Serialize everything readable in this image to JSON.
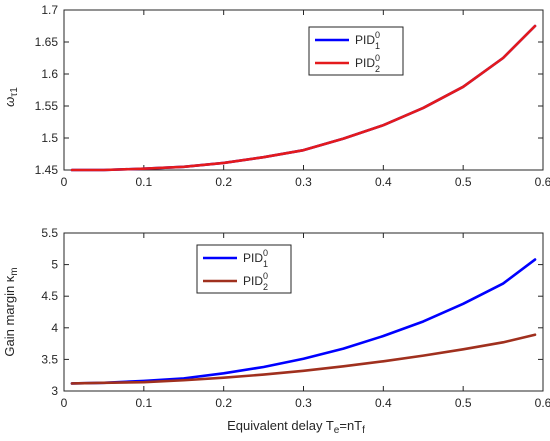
{
  "chart_data": [
    {
      "type": "line",
      "xlabel": "",
      "ylabel": {
        "base": "ω",
        "sub": "τ1"
      },
      "xlim": [
        0,
        0.6
      ],
      "ylim": [
        1.45,
        1.7
      ],
      "xticks": [
        "0",
        "0.1",
        "0.2",
        "0.3",
        "0.4",
        "0.5",
        "0.6"
      ],
      "yticks": [
        "1.45",
        "1.5",
        "1.55",
        "1.6",
        "1.65",
        "1.7"
      ],
      "grid": false,
      "legend": {
        "position": "top-right"
      },
      "series": [
        {
          "name": {
            "base": "PID",
            "sup": "0",
            "sub": "1"
          },
          "color": "#0000ff",
          "x": [
            0.01,
            0.05,
            0.1,
            0.15,
            0.2,
            0.25,
            0.3,
            0.35,
            0.4,
            0.45,
            0.5,
            0.55,
            0.59
          ],
          "y": [
            1.45,
            1.45,
            1.452,
            1.455,
            1.461,
            1.47,
            1.481,
            1.499,
            1.52,
            1.547,
            1.58,
            1.625,
            1.675
          ]
        },
        {
          "name": {
            "base": "PID",
            "sup": "0",
            "sub": "2"
          },
          "color": "#e41a1c",
          "x": [
            0.01,
            0.05,
            0.1,
            0.15,
            0.2,
            0.25,
            0.3,
            0.35,
            0.4,
            0.45,
            0.5,
            0.55,
            0.59
          ],
          "y": [
            1.45,
            1.45,
            1.452,
            1.455,
            1.461,
            1.47,
            1.481,
            1.499,
            1.52,
            1.547,
            1.58,
            1.625,
            1.675
          ]
        }
      ]
    },
    {
      "type": "line",
      "xlabel": "Equivalent delay T",
      "xlabel_parts": {
        "pre": "Equivalent delay T",
        "sub1": "e",
        "mid": "=nT",
        "sub2": "f"
      },
      "ylabel": {
        "base": "Gain margin κ",
        "sub": "m"
      },
      "xlim": [
        0,
        0.6
      ],
      "ylim": [
        3,
        5.5
      ],
      "xticks": [
        "0",
        "0.1",
        "0.2",
        "0.3",
        "0.4",
        "0.5",
        "0.6"
      ],
      "yticks": [
        "3",
        "3.5",
        "4",
        "4.5",
        "5",
        "5.5"
      ],
      "grid": false,
      "legend": {
        "position": "top-left"
      },
      "series": [
        {
          "name": {
            "base": "PID",
            "sup": "0",
            "sub": "1"
          },
          "color": "#0000ff",
          "x": [
            0.01,
            0.05,
            0.1,
            0.15,
            0.2,
            0.25,
            0.3,
            0.35,
            0.4,
            0.45,
            0.5,
            0.55,
            0.59
          ],
          "y": [
            3.12,
            3.13,
            3.16,
            3.2,
            3.28,
            3.38,
            3.51,
            3.67,
            3.87,
            4.1,
            4.38,
            4.7,
            5.08
          ]
        },
        {
          "name": {
            "base": "PID",
            "sup": "0",
            "sub": "2"
          },
          "color": "#a0301e",
          "x": [
            0.01,
            0.05,
            0.1,
            0.15,
            0.2,
            0.25,
            0.3,
            0.35,
            0.4,
            0.45,
            0.5,
            0.55,
            0.59
          ],
          "y": [
            3.12,
            3.13,
            3.14,
            3.17,
            3.21,
            3.26,
            3.32,
            3.39,
            3.47,
            3.56,
            3.66,
            3.77,
            3.89
          ]
        }
      ]
    }
  ]
}
